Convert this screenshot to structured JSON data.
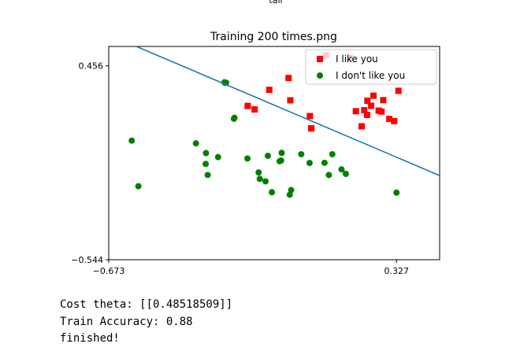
{
  "figure": {
    "top_text": "tail"
  },
  "chart_data": {
    "type": "scatter",
    "title": "Training 200 times.png",
    "xlabel": "",
    "ylabel": "",
    "xlim": [
      -0.673,
      0.477
    ],
    "ylim": [
      -0.544,
      0.556
    ],
    "x_ticks": [
      -0.673,
      0.327
    ],
    "x_tick_labels": [
      "−0.673",
      "0.327"
    ],
    "y_ticks": [
      -0.544,
      0.456
    ],
    "y_tick_labels": [
      "−0.544",
      "0.456"
    ],
    "grid": false,
    "legend_position": "top-right",
    "series": [
      {
        "name": "I like you",
        "marker": "square",
        "color": "#ff0000",
        "points": [
          [
            0.166,
            0.497
          ],
          [
            0.082,
            0.509
          ],
          [
            0.334,
            0.327
          ],
          [
            -0.048,
            0.393
          ],
          [
            -0.115,
            0.332
          ],
          [
            -0.042,
            0.278
          ],
          [
            0.281,
            0.279
          ],
          [
            0.026,
            0.197
          ],
          [
            -0.19,
            0.249
          ],
          [
            0.247,
            0.302
          ],
          [
            -0.166,
            0.231
          ],
          [
            0.265,
            0.225
          ],
          [
            0.226,
            0.276
          ],
          [
            0.275,
            0.22
          ],
          [
            0.319,
            0.171
          ],
          [
            0.302,
            0.182
          ],
          [
            0.225,
            0.203
          ],
          [
            0.215,
            0.227
          ],
          [
            0.031,
            0.133
          ],
          [
            0.239,
            0.25
          ],
          [
            0.031,
            0.134
          ],
          [
            0.186,
            0.222
          ],
          [
            0.206,
            0.144
          ]
        ]
      },
      {
        "name": "I don't like you",
        "marker": "circle",
        "color": "#008000",
        "points": [
          [
            -0.265,
            0.369
          ],
          [
            -0.271,
            0.371
          ],
          [
            -0.269,
            0.368
          ],
          [
            -0.236,
            0.188
          ],
          [
            -0.238,
            0.183
          ],
          [
            -0.593,
            0.07
          ],
          [
            -0.37,
            0.056
          ],
          [
            -0.072,
            0.007
          ],
          [
            -0.004,
            0.0
          ],
          [
            -0.191,
            -0.022
          ],
          [
            -0.12,
            -0.008
          ],
          [
            -0.335,
            0.006
          ],
          [
            -0.293,
            -0.015
          ],
          [
            -0.336,
            -0.05
          ],
          [
            -0.074,
            -0.032
          ],
          [
            -0.079,
            -0.036
          ],
          [
            0.025,
            -0.045
          ],
          [
            0.077,
            -0.044
          ],
          [
            0.104,
            0.0
          ],
          [
            0.136,
            -0.078
          ],
          [
            0.151,
            -0.101
          ],
          [
            -0.152,
            -0.094
          ],
          [
            0.092,
            -0.107
          ],
          [
            -0.329,
            -0.107
          ],
          [
            -0.148,
            -0.127
          ],
          [
            -0.57,
            -0.165
          ],
          [
            -0.106,
            -0.196
          ],
          [
            -0.039,
            -0.185
          ],
          [
            -0.044,
            -0.209
          ],
          [
            0.327,
            -0.198
          ],
          [
            -0.128,
            -0.14
          ]
        ]
      }
    ],
    "decision_boundary": {
      "name": "",
      "color": "#1f77b4",
      "points": [
        [
          -0.577,
          0.556
        ],
        [
          0.477,
          -0.11
        ]
      ]
    }
  },
  "console": {
    "lines": [
      "Cost theta: [[0.48518509]]",
      "Train Accuracy: 0.88",
      "finished!"
    ]
  }
}
